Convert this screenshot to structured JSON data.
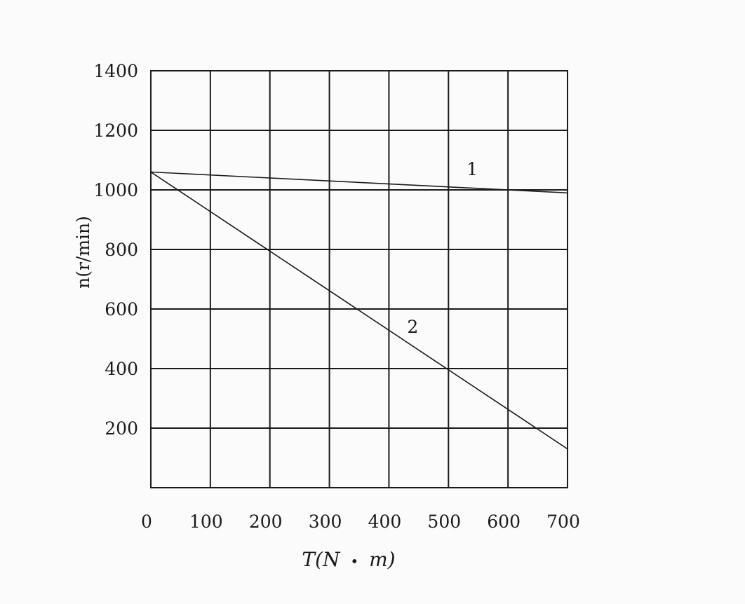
{
  "chart_data": {
    "type": "line",
    "xlabel_parts": [
      "T(N",
      "•",
      "m)"
    ],
    "ylabel": "n(r/min)",
    "xlim": [
      0,
      700
    ],
    "ylim": [
      0,
      1400
    ],
    "x_ticks": [
      0,
      100,
      200,
      300,
      400,
      500,
      600,
      700
    ],
    "y_ticks": [
      200,
      400,
      600,
      800,
      1000,
      1200,
      1400
    ],
    "grid": true,
    "reference_line_y": 1000,
    "series": [
      {
        "name": "1",
        "x": [
          0,
          700
        ],
        "y": [
          1060,
          990
        ],
        "label_at": [
          540,
          1050
        ]
      },
      {
        "name": "2",
        "x": [
          0,
          700
        ],
        "y": [
          1060,
          130
        ],
        "label_at": [
          440,
          520
        ]
      }
    ]
  }
}
